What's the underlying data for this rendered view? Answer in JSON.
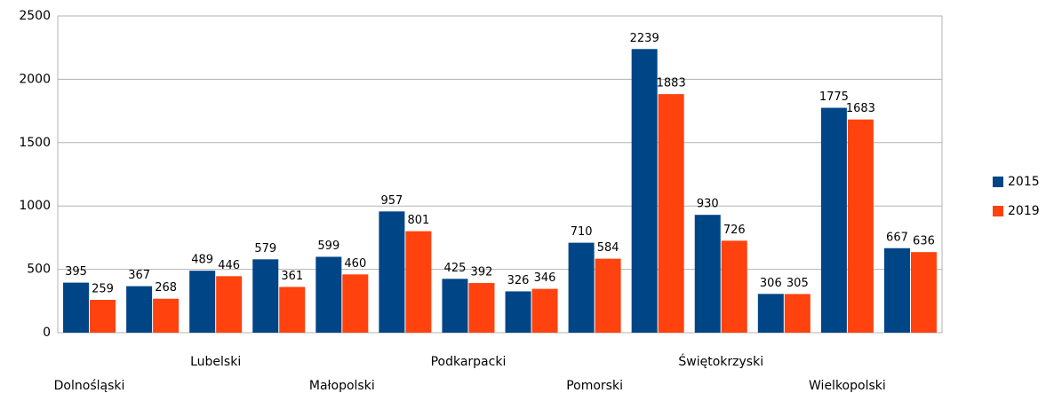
{
  "chart_data": {
    "type": "bar",
    "categories": [
      "Dolnośląski",
      null,
      "Lubelski",
      null,
      "Małopolski",
      null,
      "Podkarpacki",
      null,
      "Pomorski",
      null,
      "Świętokrzyski",
      null,
      "Wielkopolski",
      null
    ],
    "series": [
      {
        "name": "2015",
        "color": "#004586",
        "values": [
          395,
          367,
          489,
          579,
          599,
          957,
          425,
          326,
          710,
          2239,
          930,
          306,
          1775,
          667
        ]
      },
      {
        "name": "2019",
        "color": "#ff420e",
        "values": [
          259,
          268,
          446,
          361,
          460,
          801,
          392,
          346,
          584,
          1883,
          726,
          305,
          1683,
          636
        ]
      }
    ],
    "ylim": [
      0,
      2500
    ],
    "yticks": [
      0,
      500,
      1000,
      1500,
      2000,
      2500
    ],
    "grid": true,
    "legend": "right"
  }
}
